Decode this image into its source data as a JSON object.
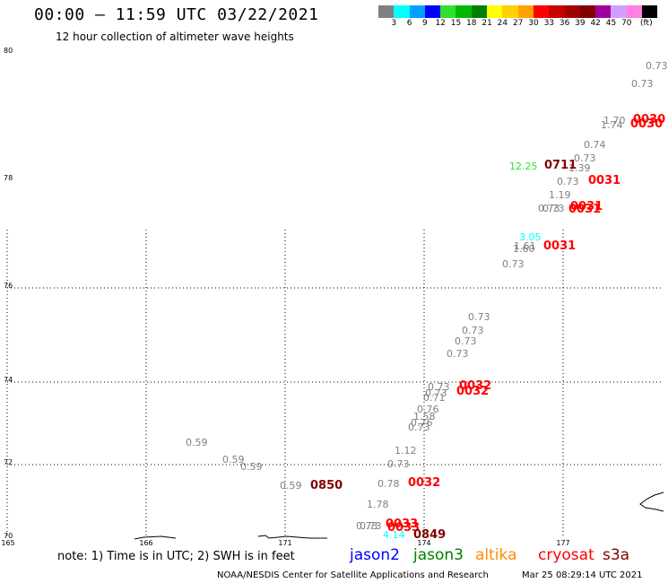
{
  "header": {
    "title": "00:00 – 11:59 UTC 03/22/2021",
    "subtitle": "12 hour collection of altimeter wave heights"
  },
  "legend": {
    "colors": [
      "#808080",
      "#00ffff",
      "#00a0ff",
      "#0000ff",
      "#30e030",
      "#00b800",
      "#008000",
      "#ffff00",
      "#ffd000",
      "#ffa000",
      "#ff0000",
      "#c80000",
      "#a00000",
      "#800000",
      "#a000a0",
      "#d0a0ff",
      "#ff80e0",
      "#000000"
    ],
    "labels": [
      "3",
      "6",
      "9",
      "12",
      "15",
      "18",
      "21",
      "24",
      "27",
      "30",
      "33",
      "36",
      "39",
      "42",
      "45",
      "70"
    ],
    "unit": "(ft)"
  },
  "axes": {
    "lat_labels": [
      "80",
      "78",
      "76",
      "74",
      "72",
      "70"
    ],
    "lon_labels": [
      "165",
      "166",
      "171",
      "174",
      "177"
    ]
  },
  "observations": [
    {
      "text": "0.73",
      "color": "#808080"
    },
    {
      "text": "0.73",
      "color": "#808080"
    },
    {
      "text": "1.70",
      "color": "#808080"
    },
    {
      "text": "1.74",
      "color": "#808080"
    },
    {
      "text": "0.74",
      "color": "#808080"
    },
    {
      "text": "0.73",
      "color": "#808080"
    },
    {
      "text": "1.39",
      "color": "#808080"
    },
    {
      "text": "12.25",
      "color": "#30e030"
    },
    {
      "text": "0.73",
      "color": "#808080"
    },
    {
      "text": "1.19",
      "color": "#808080"
    },
    {
      "text": "0.73",
      "color": "#808080"
    },
    {
      "text": "0.73",
      "color": "#808080"
    },
    {
      "text": "3.05",
      "color": "#00ffff"
    },
    {
      "text": "1.61",
      "color": "#808080"
    },
    {
      "text": "1.60",
      "color": "#808080"
    },
    {
      "text": "0.73",
      "color": "#808080"
    },
    {
      "text": "0.73",
      "color": "#808080"
    },
    {
      "text": "0.73",
      "color": "#808080"
    },
    {
      "text": "0.73",
      "color": "#808080"
    },
    {
      "text": "0.73",
      "color": "#808080"
    },
    {
      "text": "0.73",
      "color": "#808080"
    },
    {
      "text": "0.73",
      "color": "#808080"
    },
    {
      "text": "0.71",
      "color": "#808080"
    },
    {
      "text": "0.76",
      "color": "#808080"
    },
    {
      "text": "1.58",
      "color": "#808080"
    },
    {
      "text": "0.76",
      "color": "#808080"
    },
    {
      "text": "0.73",
      "color": "#808080"
    },
    {
      "text": "0.59",
      "color": "#808080"
    },
    {
      "text": "0.59",
      "color": "#808080"
    },
    {
      "text": "0.59",
      "color": "#808080"
    },
    {
      "text": "1.12",
      "color": "#808080"
    },
    {
      "text": "0.73",
      "color": "#808080"
    },
    {
      "text": "0.59",
      "color": "#808080"
    },
    {
      "text": "0.78",
      "color": "#808080"
    },
    {
      "text": "1.78",
      "color": "#808080"
    },
    {
      "text": "0.73",
      "color": "#808080"
    },
    {
      "text": "0.73",
      "color": "#808080"
    },
    {
      "text": "4.14",
      "color": "#00ffff"
    }
  ],
  "time_labels": [
    {
      "text": "0030",
      "color": "#ff0000"
    },
    {
      "text": "0030",
      "color": "#ff0000"
    },
    {
      "text": "0711",
      "color": "#800000"
    },
    {
      "text": "0031",
      "color": "#ff0000"
    },
    {
      "text": "0031",
      "color": "#ff0000"
    },
    {
      "text": "0031",
      "color": "#ff0000"
    },
    {
      "text": "0031",
      "color": "#ff0000"
    },
    {
      "text": "0032",
      "color": "#ff0000"
    },
    {
      "text": "0032",
      "color": "#ff0000"
    },
    {
      "text": "0850",
      "color": "#800000"
    },
    {
      "text": "0032",
      "color": "#ff0000"
    },
    {
      "text": "0033",
      "color": "#ff0000"
    },
    {
      "text": "0033",
      "color": "#ff0000"
    },
    {
      "text": "0849",
      "color": "#800000"
    }
  ],
  "footer": {
    "note": "note: 1) Time is in UTC; 2) SWH is in feet",
    "satellites": [
      {
        "name": "jason2",
        "color": "#0000ff"
      },
      {
        "name": "jason3",
        "color": "#008000"
      },
      {
        "name": "altika",
        "color": "#ff8c00"
      },
      {
        "name": "cryosat",
        "color": "#ff0000"
      },
      {
        "name": "s3a",
        "color": "#800000"
      }
    ],
    "credit": "NOAA/NESDIS Center for Satellite Applications and Research",
    "timestamp": "Mar 25 08:29:14 UTC 2021"
  }
}
